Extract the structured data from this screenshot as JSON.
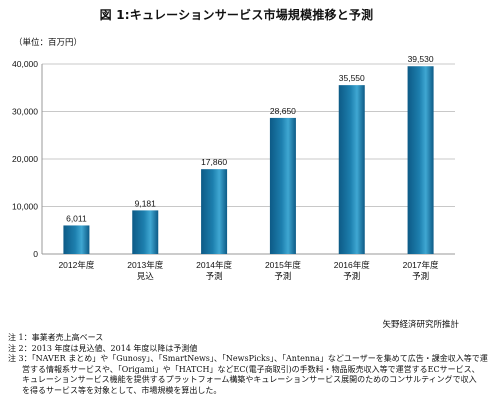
{
  "title": "図 1:キュレーションサービス市場規模推移と予測",
  "unit_label": "（単位：百万円）",
  "source": "矢野経済研究所推計",
  "notes": [
    "注 1：事業者売上高ベース",
    "注 2：2013 年度は見込値、2014 年度以降は予測値",
    "注 3：「NAVER まとめ」や「Gunosy」、「SmartNews」、「NewsPicks」、「Antenna」などユーザーを集めて広告・課金収入等で運",
    "営する情報系サービスや、「Origami」や「HATCH」などEC(電子商取引)の手数料・物品販売収入等で運営するECサービス、",
    "キュレーションサービス機能を提供するプラットフォーム構築やキュレーションサービス展開のためのコンサルティングで収入",
    "を得るサービス等を対象として、市場規模を算出した。"
  ],
  "colors": {
    "bar_top": "#3fa7d2",
    "bar_mid": "#1d7fae",
    "bar_bottom": "#0d5a86",
    "axis": "#999999",
    "grid": "#c8c8c8"
  },
  "chart_data": {
    "type": "bar",
    "title": "図 1:キュレーションサービス市場規模推移と予測",
    "ylabel": "（単位：百万円）",
    "ylim": [
      0,
      40000
    ],
    "yticks": [
      "0",
      "10,000",
      "20,000",
      "30,000",
      "40,000"
    ],
    "ytick_values": [
      0,
      10000,
      20000,
      30000,
      40000
    ],
    "grid": true,
    "categories": [
      [
        "2012年度"
      ],
      [
        "2013年度",
        "見込"
      ],
      [
        "2014年度",
        "予測"
      ],
      [
        "2015年度",
        "予測"
      ],
      [
        "2016年度",
        "予測"
      ],
      [
        "2017年度",
        "予測"
      ]
    ],
    "values": [
      6011,
      9181,
      17860,
      28650,
      35550,
      39530
    ],
    "value_labels": [
      "6,011",
      "9,181",
      "17,860",
      "28,650",
      "35,550",
      "39,530"
    ]
  }
}
